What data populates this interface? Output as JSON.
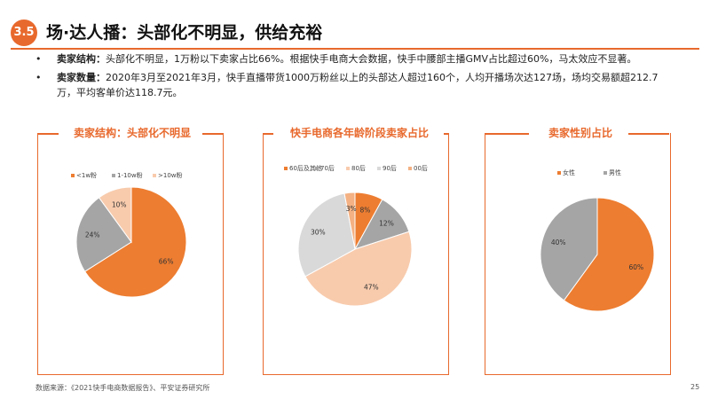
{
  "header": {
    "section": "3.5",
    "title": "场·达人播：头部化不明显，供给充裕",
    "accent": "#e8692d"
  },
  "bullets": [
    {
      "label": "卖家结构：",
      "text": "头部化不明显，1万粉以下卖家占比66%。根据快手电商大会数据，快手中腰部主播GMV占比超过60%，马太效应不显著。"
    },
    {
      "label": "卖家数量：",
      "text": "2020年3月至2021年3月，快手直播带货1000万粉丝以上的头部达人超过160个，人均开播场次达127场，场均交易额超212.7万，平均客单价达118.7元。"
    }
  ],
  "chart_data": [
    {
      "type": "pie",
      "title": "卖家结构：头部化不明显",
      "categories": [
        "<1w粉",
        "1-10w粉",
        ">10w粉"
      ],
      "values": [
        66,
        24,
        10
      ],
      "value_labels": [
        "66%",
        "24%",
        "10%"
      ],
      "colors": [
        "#ed7d31",
        "#a5a5a5",
        "#f8cbad"
      ]
    },
    {
      "type": "pie",
      "title": "快手电商各年龄阶段卖家占比",
      "categories": [
        "60后及其他",
        "70后",
        "80后",
        "90后",
        "00后"
      ],
      "values": [
        8,
        12,
        47,
        30,
        3
      ],
      "value_labels": [
        "8%",
        "12%",
        "47%",
        "30%",
        "3%"
      ],
      "colors": [
        "#ed7d31",
        "#a5a5a5",
        "#f8cbad",
        "#d9d9d9",
        "#f4b183"
      ]
    },
    {
      "type": "pie",
      "title": "卖家性别占比",
      "categories": [
        "女性",
        "男性"
      ],
      "values": [
        60,
        40
      ],
      "value_labels": [
        "60%",
        "40%"
      ],
      "colors": [
        "#ed7d31",
        "#a5a5a5"
      ]
    }
  ],
  "footer": {
    "source": "数据来源：《2021快手电商数据报告》、平安证券研究所",
    "page": "25"
  }
}
